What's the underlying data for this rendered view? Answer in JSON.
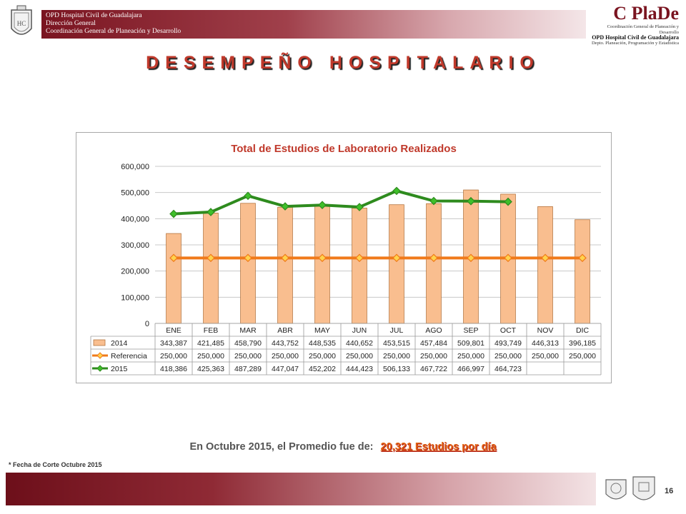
{
  "header": {
    "org_lines": [
      "OPD Hospital Civil de Guadalajara",
      "Dirección General",
      "Coordinación General de Planeación y Desarrollo"
    ],
    "logo_word": "C PlaDe",
    "logo_lines": [
      "Coordinación General de Planeación y Desarrollo",
      "OPD Hospital Civil de Guadalajara",
      "Depto. Planeación, Programación y Estadística"
    ]
  },
  "page_title": "DESEMPEÑO HOSPITALARIO",
  "chart_data": {
    "type": "bar",
    "title": "Total de Estudios de Laboratorio Realizados",
    "categories": [
      "ENE",
      "FEB",
      "MAR",
      "ABR",
      "MAY",
      "JUN",
      "JUL",
      "AGO",
      "SEP",
      "OCT",
      "NOV",
      "DIC"
    ],
    "ylim": [
      0,
      600000
    ],
    "yticks": [
      "0",
      "100,000",
      "200,000",
      "300,000",
      "400,000",
      "500,000",
      "600,000"
    ],
    "grid": true,
    "series": [
      {
        "name": "2014",
        "kind": "bar",
        "color": "#f9be8f",
        "values": [
          343387,
          421485,
          458790,
          443752,
          448535,
          440652,
          453515,
          457484,
          509801,
          493749,
          446313,
          396185
        ],
        "labels": [
          "343,387",
          "421,485",
          "458,790",
          "443,752",
          "448,535",
          "440,652",
          "453,515",
          "457,484",
          "509,801",
          "493,749",
          "446,313",
          "396,185"
        ]
      },
      {
        "name": "Referencia",
        "kind": "line",
        "color": "#f07a1a",
        "marker": "#ffd24d",
        "values": [
          250000,
          250000,
          250000,
          250000,
          250000,
          250000,
          250000,
          250000,
          250000,
          250000,
          250000,
          250000
        ],
        "labels": [
          "250,000",
          "250,000",
          "250,000",
          "250,000",
          "250,000",
          "250,000",
          "250,000",
          "250,000",
          "250,000",
          "250,000",
          "250,000",
          "250,000"
        ]
      },
      {
        "name": "2015",
        "kind": "line",
        "color": "#2e8b1e",
        "marker": "#3fbf2a",
        "values": [
          418386,
          425363,
          487289,
          447047,
          452202,
          444423,
          506133,
          467722,
          466997,
          464723,
          null,
          null
        ],
        "labels": [
          "418,386",
          "425,363",
          "487,289",
          "447,047",
          "452,202",
          "444,423",
          "506,133",
          "467,722",
          "466,997",
          "464,723",
          "",
          ""
        ]
      }
    ]
  },
  "caption": {
    "text": "En Octubre 2015, el Promedio fue de:",
    "highlight": "20,321  Estudios por día"
  },
  "footnote": "* Fecha de Corte Octubre 2015",
  "page_number": "16"
}
